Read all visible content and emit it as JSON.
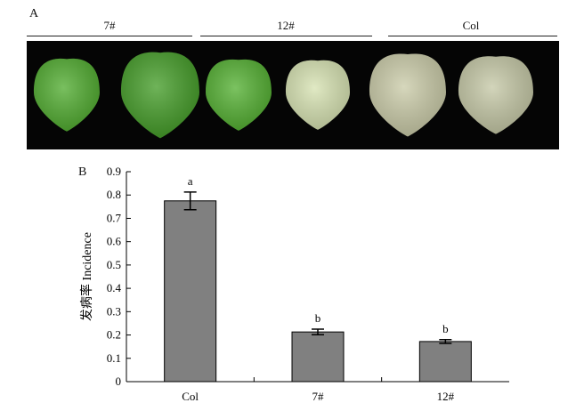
{
  "panel_a": {
    "label": "A",
    "groups": [
      {
        "label": "7#",
        "leaf_colors": [
          "#4caa2a",
          "#3f9a22"
        ]
      },
      {
        "label": "12#",
        "leaf_colors": [
          "#4fae2c",
          "#d6e2b0"
        ]
      },
      {
        "label": "Col",
        "leaf_colors": [
          "#c9caa6",
          "#c4c7a4"
        ]
      }
    ]
  },
  "panel_b": {
    "label": "B"
  },
  "chart_data": {
    "type": "bar",
    "categories": [
      "Col",
      "7#",
      "12#"
    ],
    "values": [
      0.775,
      0.213,
      0.172
    ],
    "errors": [
      0.038,
      0.012,
      0.008
    ],
    "significance": [
      "a",
      "b",
      "b"
    ],
    "ylabel": "发病率 Incidence",
    "xlabel": "",
    "ylim": [
      0,
      0.9
    ],
    "yticks": [
      "0",
      "0.1",
      "0.2",
      "0.3",
      "0.4",
      "0.5",
      "0.6",
      "0.7",
      "0.8",
      "0.9"
    ],
    "bar_color": "#808080",
    "grid": false
  }
}
